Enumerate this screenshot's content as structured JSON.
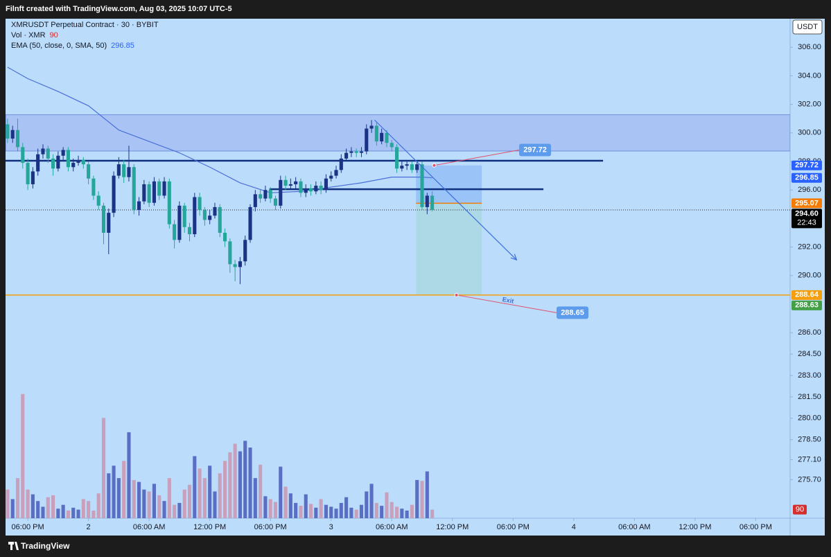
{
  "header": "Filnft created with TradingView.com, Aug 03, 2025 10:07 UTC-5",
  "footer": "TradingView",
  "chart_data": {
    "type": "candlestick",
    "title": "XMRUSDT Perpetual Contract · 30 · BYBIT",
    "indicators": [
      {
        "name": "Vol · XMR",
        "value": 90,
        "color": "#d32f2f"
      },
      {
        "name": "EMA (50, close, 0, SMA, 50)",
        "value": 296.85,
        "color": "#2962ff"
      }
    ],
    "currency": "USDT",
    "x": [
      -2,
      -1.5,
      -1,
      -0.5,
      0,
      0.5,
      1,
      1.5,
      2,
      2.5,
      3,
      3.5,
      4,
      4.5,
      5,
      5.5,
      6,
      6.5,
      7,
      7.5,
      8,
      8.5,
      9,
      9.5,
      10,
      10.5,
      11,
      11.5,
      12,
      12.5,
      13,
      13.5,
      14,
      14.5,
      15,
      15.5,
      16,
      16.5,
      17,
      17.5,
      18,
      18.5,
      19,
      19.5,
      20,
      20.5,
      21,
      21.5,
      22,
      22.5,
      23,
      23.5,
      24,
      24.5,
      25,
      25.5,
      26,
      26.5,
      27,
      27.5,
      28,
      28.5,
      29,
      29.5,
      30,
      30.5,
      31,
      31.5,
      32,
      32.5,
      33,
      33.5,
      34,
      34.5,
      35,
      35.5,
      36,
      36.5,
      37,
      37.5,
      38,
      38.5,
      39,
      39.5,
      40
    ],
    "open": [
      300.6,
      299.6,
      300.2,
      299.0,
      297.9,
      296.4,
      297.3,
      298.5,
      298.9,
      298.2,
      297.5,
      298.4,
      298.8,
      297.6,
      297.9,
      298.1,
      297.8,
      296.8,
      295.6,
      294.9,
      293.0,
      294.4,
      297.0,
      297.8,
      296.9,
      297.6,
      294.6,
      295.2,
      296.4,
      295.1,
      296.6,
      295.6,
      296.6,
      293.6,
      292.5,
      294.9,
      293.4,
      292.9,
      295.5,
      294.6,
      293.9,
      294.2,
      294.8,
      293.0,
      292.4,
      290.8,
      290.6,
      291.0,
      292.5,
      294.8,
      295.7,
      295.4,
      296.0,
      295.4,
      294.9,
      296.7,
      296.3,
      296.4,
      296.6,
      295.8,
      296.1,
      295.9,
      296.3,
      296.0,
      296.8,
      297.0,
      297.4,
      298.2,
      298.6,
      298.7,
      298.6,
      298.7,
      300.3,
      300.5,
      299.4,
      300.0,
      299.3,
      299.0,
      297.5,
      297.7,
      297.8,
      297.4,
      297.8,
      294.8,
      295.6
    ],
    "high": [
      301.0,
      300.5,
      301.0,
      299.3,
      298.2,
      297.6,
      298.9,
      299.2,
      299.1,
      298.5,
      298.7,
      299.0,
      299.0,
      298.2,
      298.4,
      298.3,
      298.0,
      297.0,
      295.9,
      295.1,
      294.7,
      297.3,
      298.3,
      298.1,
      299.1,
      297.8,
      295.5,
      296.7,
      296.6,
      296.9,
      296.8,
      296.9,
      296.8,
      293.9,
      295.2,
      295.1,
      293.7,
      295.8,
      295.8,
      294.8,
      294.6,
      295.1,
      295.0,
      293.3,
      292.6,
      291.1,
      291.3,
      292.8,
      295.0,
      296.0,
      296.0,
      296.3,
      296.2,
      295.6,
      297.0,
      297.0,
      296.8,
      296.9,
      296.8,
      296.4,
      296.4,
      296.6,
      296.6,
      297.1,
      297.3,
      297.7,
      298.5,
      298.9,
      299.0,
      298.9,
      299.0,
      300.6,
      300.9,
      300.8,
      300.3,
      300.2,
      299.5,
      299.2,
      298.0,
      298.1,
      298.0,
      298.0,
      298.0,
      295.8,
      295.9
    ],
    "low": [
      299.3,
      299.3,
      298.7,
      297.5,
      296.0,
      296.1,
      297.0,
      298.2,
      297.9,
      297.0,
      297.3,
      298.1,
      297.3,
      297.3,
      297.7,
      297.5,
      296.4,
      295.3,
      294.6,
      292.2,
      291.5,
      294.1,
      296.8,
      296.5,
      296.6,
      294.3,
      294.2,
      295.0,
      294.8,
      294.9,
      295.3,
      295.4,
      293.3,
      291.9,
      292.3,
      293.0,
      292.4,
      292.7,
      294.2,
      293.5,
      293.6,
      294.0,
      292.7,
      292.0,
      290.2,
      289.6,
      289.4,
      290.7,
      292.3,
      294.5,
      295.1,
      295.2,
      295.1,
      294.6,
      294.7,
      296.0,
      296.0,
      296.1,
      295.5,
      295.5,
      295.6,
      295.7,
      295.7,
      295.8,
      296.6,
      296.8,
      297.2,
      298.0,
      298.3,
      298.3,
      298.3,
      298.5,
      300.0,
      299.1,
      299.2,
      299.0,
      298.7,
      297.2,
      297.3,
      297.4,
      297.2,
      297.2,
      294.6,
      294.3,
      294.5
    ],
    "close": [
      299.6,
      300.2,
      299.0,
      297.9,
      296.4,
      297.3,
      298.5,
      298.9,
      298.2,
      297.5,
      298.4,
      298.8,
      297.6,
      297.9,
      298.1,
      297.8,
      296.8,
      295.6,
      294.9,
      293.0,
      294.4,
      297.0,
      297.8,
      296.9,
      297.6,
      294.6,
      295.2,
      296.4,
      295.1,
      296.6,
      295.6,
      296.6,
      293.6,
      292.5,
      294.9,
      293.4,
      292.9,
      295.5,
      294.6,
      293.9,
      294.2,
      294.8,
      293.0,
      292.4,
      290.8,
      290.6,
      291.0,
      292.5,
      294.8,
      295.7,
      295.4,
      296.0,
      295.4,
      294.9,
      296.7,
      296.3,
      296.4,
      296.6,
      295.8,
      296.1,
      295.9,
      296.3,
      296.0,
      296.8,
      297.0,
      297.4,
      298.2,
      298.6,
      298.7,
      298.6,
      298.7,
      300.3,
      300.5,
      299.4,
      300.0,
      299.3,
      299.0,
      297.5,
      297.7,
      297.8,
      297.4,
      297.8,
      294.8,
      295.6,
      294.6
    ],
    "volume": [
      300,
      200,
      420,
      1300,
      300,
      250,
      180,
      120,
      220,
      240,
      100,
      140,
      80,
      110,
      90,
      200,
      180,
      80,
      260,
      1050,
      470,
      550,
      420,
      600,
      900,
      400,
      380,
      300,
      280,
      360,
      240,
      180,
      420,
      140,
      160,
      300,
      350,
      650,
      520,
      420,
      550,
      280,
      470,
      600,
      690,
      780,
      700,
      810,
      740,
      420,
      560,
      230,
      200,
      170,
      540,
      330,
      260,
      160,
      130,
      250,
      150,
      110,
      200,
      140,
      120,
      100,
      160,
      220,
      110,
      90,
      140,
      280,
      360,
      160,
      130,
      270,
      170,
      120,
      100,
      80,
      140,
      400,
      390,
      490,
      90
    ],
    "up_color": "#1a3385",
    "down_color": "#26a69a",
    "volume_up_color": "#5a6fc4",
    "volume_down_color": "#c9a0bb",
    "ema": {
      "x": [
        -2,
        0,
        3,
        6,
        9,
        12,
        15,
        18,
        21,
        24,
        27,
        30,
        33,
        36,
        39,
        40
      ],
      "values": [
        304.6,
        303.8,
        302.9,
        301.9,
        300.2,
        299.4,
        298.6,
        297.6,
        296.5,
        295.8,
        295.9,
        296.2,
        296.5,
        296.9,
        296.9,
        296.85
      ],
      "color": "#4a6fd8"
    },
    "xlim": [
      -2.2,
      75.4
    ],
    "xticks": [
      {
        "value": 0,
        "label": "06:00 PM"
      },
      {
        "value": 6,
        "label": "2"
      },
      {
        "value": 12,
        "label": "06:00 AM"
      },
      {
        "value": 18,
        "label": "12:00 PM"
      },
      {
        "value": 24,
        "label": "06:00 PM"
      },
      {
        "value": 30,
        "label": "3"
      },
      {
        "value": 36,
        "label": "06:00 AM"
      },
      {
        "value": 42,
        "label": "12:00 PM"
      },
      {
        "value": 48,
        "label": "06:00 PM"
      },
      {
        "value": 54,
        "label": "4"
      },
      {
        "value": 60,
        "label": "06:00 AM"
      },
      {
        "value": 66,
        "label": "12:00 PM"
      },
      {
        "value": 72,
        "label": "06:00 PM"
      }
    ],
    "ylim": [
      273,
      308
    ],
    "yticks": [
      {
        "value": 306,
        "label": "306.00"
      },
      {
        "value": 304,
        "label": "304.00"
      },
      {
        "value": 302,
        "label": "302.00"
      },
      {
        "value": 300,
        "label": "300.00"
      },
      {
        "value": 298,
        "label": "298.00"
      },
      {
        "value": 296,
        "label": "296.00"
      },
      {
        "value": 292,
        "label": "292.00"
      },
      {
        "value": 290,
        "label": "290.00"
      },
      {
        "value": 286,
        "label": "286.00"
      },
      {
        "value": 284.5,
        "label": "284.50"
      },
      {
        "value": 283,
        "label": "283.00"
      },
      {
        "value": 281.5,
        "label": "281.50"
      },
      {
        "value": 280,
        "label": "280.00"
      },
      {
        "value": 278.5,
        "label": "278.50"
      },
      {
        "value": 277.1,
        "label": "277.10"
      },
      {
        "value": 275.7,
        "label": "275.70"
      }
    ],
    "vlim": [
      0,
      1400
    ],
    "zone": {
      "ylim": [
        298.73,
        301.27
      ],
      "color": "#a9c4f4"
    },
    "levels": [
      {
        "value": 298.05,
        "x": [
          -2.2,
          56.9
        ],
        "color": "#0d2f7e"
      },
      {
        "value": 296.05,
        "x": [
          23.9,
          51
        ],
        "color": "#0d2f7e"
      },
      {
        "value": 288.64,
        "x": [
          -2.2,
          75.4
        ],
        "color": "#f59e0b"
      }
    ],
    "trendline": {
      "x": [
        34.3,
        48.35
      ],
      "y": [
        300.9,
        291.1
      ],
      "color": "#3d6fdc"
    },
    "position": {
      "x": [
        38.4,
        44.9
      ],
      "entry": 295.07,
      "stop": 297.72,
      "target": 288.65
    },
    "callouts": [
      {
        "label": 297.72,
        "x": [
          40.2,
          48.6
        ],
        "y": [
          297.72,
          298.8
        ]
      },
      {
        "label": 288.65,
        "x": [
          42.4,
          52.3
        ],
        "y": [
          288.64,
          287.4
        ],
        "text": "Exit"
      }
    ],
    "price_labels": [
      {
        "value": 297.72,
        "color": "#2962ff"
      },
      {
        "value": 296.85,
        "color": "#2962ff"
      },
      {
        "value": 295.07,
        "color": "#f57c00"
      },
      {
        "value": 294.6,
        "label": "294.60",
        "color": "#000000"
      },
      {
        "value": 288.64,
        "color": "#f59e0b"
      },
      {
        "value": 288.63,
        "color": "#43a047"
      }
    ],
    "last_time": "22:43"
  }
}
